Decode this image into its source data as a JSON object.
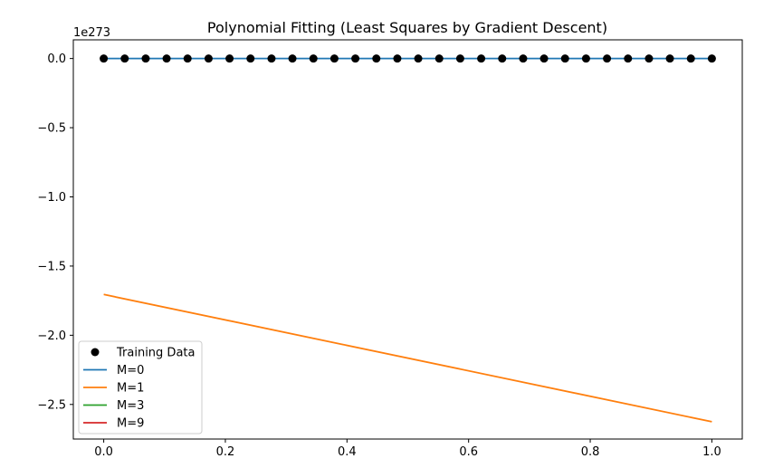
{
  "chart_data": {
    "type": "line",
    "title": "Polynomial Fitting (Least Squares by Gradient Descent)",
    "xlabel": "",
    "ylabel": "",
    "y_offset_label": "1e273",
    "xlim": [
      -0.05,
      1.05
    ],
    "ylim": [
      -2.75,
      0.135
    ],
    "x_ticks": [
      0.0,
      0.2,
      0.4,
      0.6,
      0.8,
      1.0
    ],
    "x_tick_labels": [
      "0.0",
      "0.2",
      "0.4",
      "0.6",
      "0.8",
      "1.0"
    ],
    "y_ticks": [
      0.0,
      -0.5,
      -1.0,
      -1.5,
      -2.0,
      -2.5
    ],
    "y_tick_labels": [
      "0.0",
      "−0.5",
      "−1.0",
      "−1.5",
      "−2.0",
      "−2.5"
    ],
    "grid": false,
    "legend_position": "lower-left",
    "training_data": {
      "name": "Training Data",
      "color": "#000000",
      "x": [
        0.0,
        0.0345,
        0.069,
        0.1034,
        0.1379,
        0.1724,
        0.2069,
        0.2414,
        0.2759,
        0.3103,
        0.3448,
        0.3793,
        0.4138,
        0.4483,
        0.4828,
        0.5172,
        0.5517,
        0.5862,
        0.6207,
        0.6552,
        0.6897,
        0.7241,
        0.7586,
        0.7931,
        0.8276,
        0.8621,
        0.8966,
        0.931,
        0.9655,
        1.0
      ],
      "y": [
        0,
        0,
        0,
        0,
        0,
        0,
        0,
        0,
        0,
        0,
        0,
        0,
        0,
        0,
        0,
        0,
        0,
        0,
        0,
        0,
        0,
        0,
        0,
        0,
        0,
        0,
        0,
        0,
        0,
        0
      ]
    },
    "series": [
      {
        "name": "M=0",
        "color": "#1f77b4",
        "x": [
          0.0,
          1.0
        ],
        "y": [
          0.0,
          0.0
        ]
      },
      {
        "name": "M=1",
        "color": "#ff7f0e",
        "x": [
          0.0,
          1.0
        ],
        "y": [
          -1.705,
          -2.625
        ]
      },
      {
        "name": "M=3",
        "color": "#2ca02c",
        "x": [],
        "y": []
      },
      {
        "name": "M=9",
        "color": "#d62728",
        "x": [],
        "y": []
      }
    ]
  }
}
